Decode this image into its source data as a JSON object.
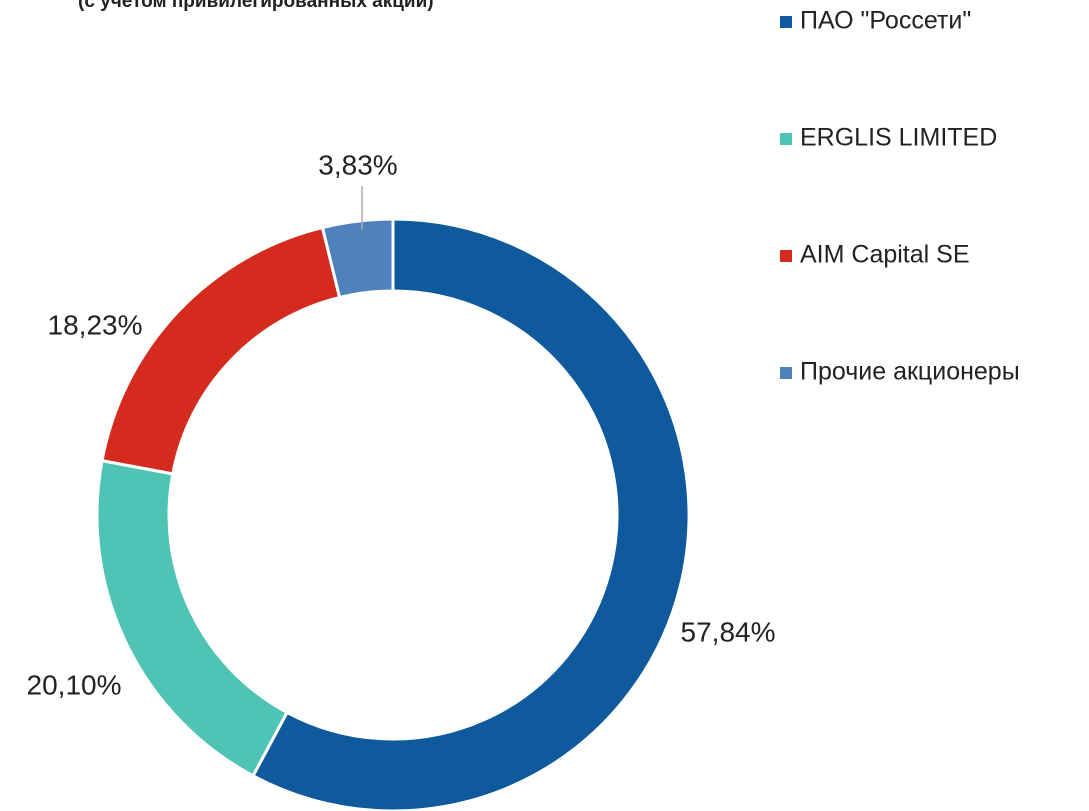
{
  "chart_data": {
    "type": "pie",
    "subtitle": "(с учетом привилегированных акций)",
    "categories": [
      "ПАО \"Россети\"",
      "ERGLIS LIMITED",
      "AIM Capital SE",
      "Прочие акционеры"
    ],
    "values": [
      57.84,
      20.1,
      18.23,
      3.83
    ],
    "value_labels": [
      "57,84%",
      "20,10%",
      "18,23%",
      "3,83%"
    ],
    "colors": [
      "#0e5a9c",
      "#4fc4b4",
      "#d52b1e",
      "#4f81bd"
    ],
    "donut": true,
    "legend": "right"
  }
}
